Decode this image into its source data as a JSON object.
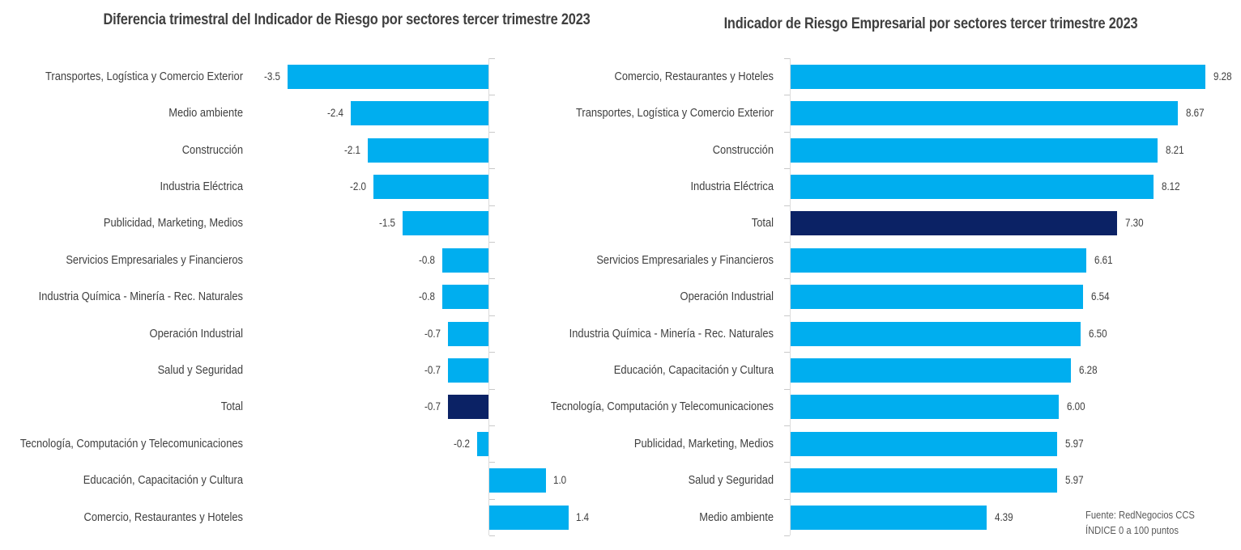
{
  "page": {
    "background": "#FFFFFF"
  },
  "colors": {
    "bar_accent": "#00AEEF",
    "total_bar": "#0B2265",
    "axis_line": "#DCDCDC",
    "tick": "#C9C9C9",
    "title_text": "#3F3F3F",
    "label_text": "#3F3F3F",
    "note_text": "#595959"
  },
  "source_note": {
    "line1": "Fuente: RedNegocios CCS",
    "line2": "ÍNDICE 0 a 100  puntos"
  },
  "chart_data": [
    {
      "type": "bar",
      "orientation": "horizontal",
      "title": "Diferencia trimestral del Indicador de Riesgo por sectores tercer trimestre 2023",
      "categories": [
        "Transportes, Logística y Comercio Exterior",
        "Medio ambiente",
        "Construcción",
        "Industria Eléctrica",
        "Publicidad, Marketing, Medios",
        "Servicios Empresariales y Financieros",
        "Industria Química - Minería - Rec. Naturales",
        "Operación Industrial",
        "Salud y Seguridad",
        "Total",
        "Tecnología, Computación y Telecomunicaciones",
        "Educación, Capacitación y Cultura",
        "Comercio, Restaurantes y Hoteles"
      ],
      "values": [
        -3.5,
        -2.4,
        -2.1,
        -2.0,
        -1.5,
        -0.8,
        -0.8,
        -0.7,
        -0.7,
        -0.7,
        -0.2,
        1.0,
        1.4
      ],
      "value_labels": [
        "-3.5",
        "-2.4",
        "-2.1",
        "-2.0",
        "-1.5",
        "-0.8",
        "-0.8",
        "-0.7",
        "-0.7",
        "-0.7",
        "-0.2",
        "1.0",
        "1.4"
      ],
      "highlight_category": "Total",
      "bar_color": "#00AEEF",
      "highlight_color": "#0B2265",
      "xlim": [
        -4.1,
        1.5
      ],
      "grid": false,
      "legend": false
    },
    {
      "type": "bar",
      "orientation": "horizontal",
      "title": "Indicador de Riesgo Empresarial por sectores tercer trimestre 2023",
      "categories": [
        "Comercio, Restaurantes y Hoteles",
        "Transportes, Logística y Comercio Exterior",
        "Construcción",
        "Industria Eléctrica",
        "Total",
        "Servicios Empresariales y Financieros",
        "Operación Industrial",
        "Industria Química - Minería - Rec. Naturales",
        "Educación, Capacitación y Cultura",
        "Tecnología, Computación y Telecomunicaciones",
        "Publicidad, Marketing, Medios",
        "Salud y Seguridad",
        "Medio ambiente"
      ],
      "values": [
        9.28,
        8.67,
        8.21,
        8.12,
        7.3,
        6.61,
        6.54,
        6.5,
        6.28,
        6.0,
        5.97,
        5.97,
        4.39
      ],
      "value_labels": [
        "9.28",
        "8.67",
        "8.21",
        "8.12",
        "7.30",
        "6.61",
        "6.54",
        "6.50",
        "6.28",
        "6.00",
        "5.97",
        "5.97",
        "4.39"
      ],
      "highlight_category": "Total",
      "bar_color": "#00AEEF",
      "highlight_color": "#0B2265",
      "xlim": [
        0,
        9.3
      ],
      "grid": false,
      "legend": false
    }
  ]
}
